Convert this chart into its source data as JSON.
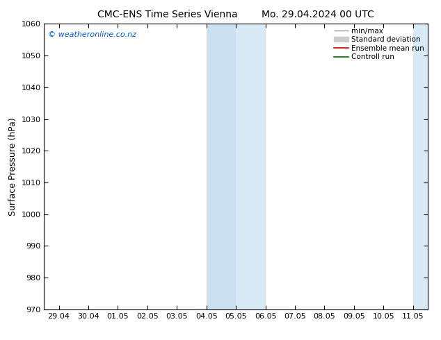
{
  "title_left": "CMC-ENS Time Series Vienna",
  "title_right": "Mo. 29.04.2024 00 UTC",
  "ylabel": "Surface Pressure (hPa)",
  "ylim": [
    970,
    1060
  ],
  "yticks": [
    970,
    980,
    990,
    1000,
    1010,
    1020,
    1030,
    1040,
    1050,
    1060
  ],
  "x_tick_labels": [
    "29.04",
    "30.04",
    "01.05",
    "02.05",
    "03.05",
    "04.05",
    "05.05",
    "06.05",
    "07.05",
    "08.05",
    "09.05",
    "10.05",
    "11.05"
  ],
  "x_tick_positions": [
    0,
    1,
    2,
    3,
    4,
    5,
    6,
    7,
    8,
    9,
    10,
    11,
    12
  ],
  "xlim": [
    -0.5,
    12.5
  ],
  "shade1_x_start": 5.0,
  "shade1_x_end": 6.0,
  "shade1_color": "#cce0f0",
  "shade2_x_start": 6.0,
  "shade2_x_end": 7.0,
  "shade2_color": "#d8eaf5",
  "shade3_x_start": 12.0,
  "shade3_x_end": 12.5,
  "shade3_color": "#d8eaf5",
  "bg_color": "#ffffff",
  "watermark": "© weatheronline.co.nz",
  "watermark_color": "#0055cc",
  "legend_labels": [
    "min/max",
    "Standard deviation",
    "Ensemble mean run",
    "Controll run"
  ],
  "legend_line_color": "#999999",
  "legend_box_color": "#cccccc",
  "legend_red_color": "#cc0000",
  "legend_green_color": "#006600",
  "title_fontsize": 10,
  "ylabel_fontsize": 9,
  "tick_fontsize": 8,
  "legend_fontsize": 7.5,
  "watermark_fontsize": 8
}
